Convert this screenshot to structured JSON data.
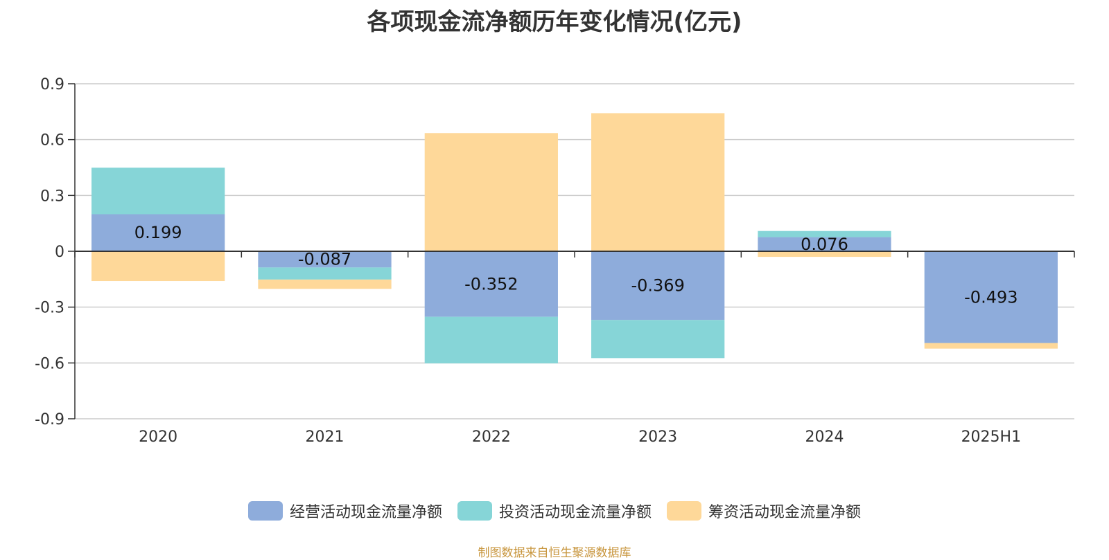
{
  "colors": {
    "operating": "#8eacdb",
    "investing": "#86d5d7",
    "financing": "#fed899",
    "axis": "#333333",
    "grid": "#cccccc",
    "text": "#333333",
    "source": "#c8963e"
  },
  "chart_data": {
    "type": "bar",
    "stacked": true,
    "title": "各项现金流净额历年变化情况(亿元)",
    "categories": [
      "2020",
      "2021",
      "2022",
      "2023",
      "2024",
      "2025H1"
    ],
    "y_ticks": [
      "0.9",
      "0.6",
      "0.3",
      "0",
      "-0.3",
      "-0.6",
      "-0.9"
    ],
    "ylim": [
      -0.9,
      0.9
    ],
    "grid": true,
    "legend_position": "bottom",
    "series": [
      {
        "name": "经营活动现金流量净额",
        "values": [
          0.199,
          -0.087,
          -0.352,
          -0.369,
          0.076,
          -0.493
        ],
        "labels": [
          "0.199",
          "-0.087",
          "-0.352",
          "-0.369",
          "0.076",
          "-0.493"
        ]
      },
      {
        "name": "投资活动现金流量净额",
        "values": [
          0.25,
          -0.065,
          -0.25,
          -0.205,
          0.033,
          0
        ]
      },
      {
        "name": "筹资活动现金流量净额",
        "values": [
          -0.16,
          -0.05,
          0.635,
          0.742,
          -0.03,
          -0.03
        ]
      }
    ]
  },
  "legend": [
    {
      "label": "经营活动现金流量净额",
      "color": "#8eacdb"
    },
    {
      "label": "投资活动现金流量净额",
      "color": "#86d5d7"
    },
    {
      "label": "筹资活动现金流量净额",
      "color": "#fed899"
    }
  ],
  "source_note": "制图数据来自恒生聚源数据库"
}
